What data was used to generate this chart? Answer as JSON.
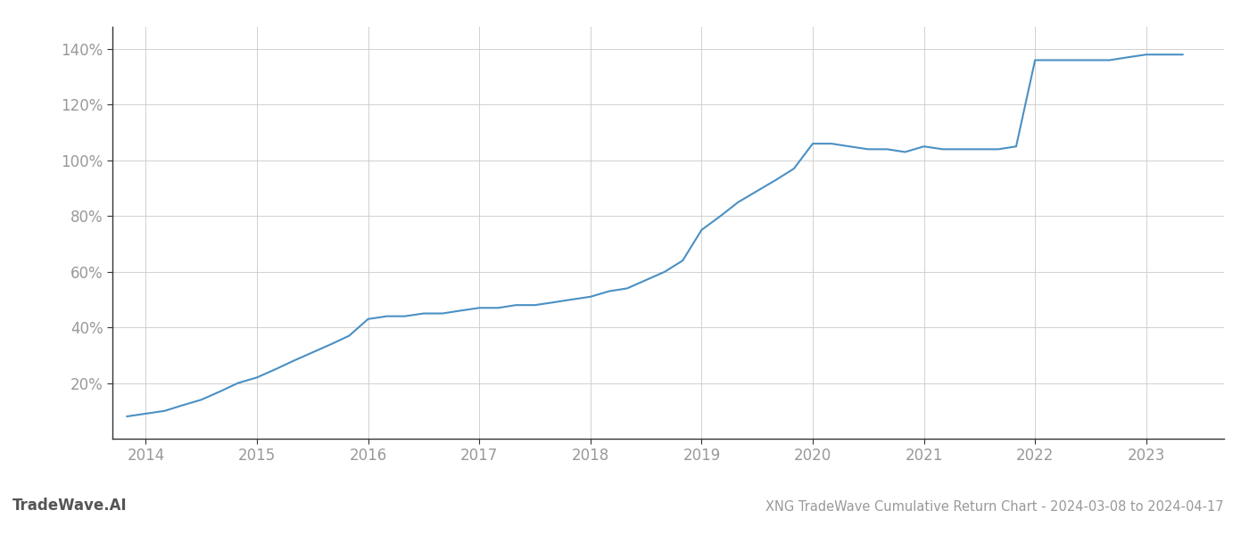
{
  "title": "XNG TradeWave Cumulative Return Chart - 2024-03-08 to 2024-04-17",
  "watermark": "TradeWave.AI",
  "line_color": "#4a90c4",
  "background_color": "#ffffff",
  "grid_color": "#cccccc",
  "x_years": [
    2013.83,
    2014.0,
    2014.17,
    2014.33,
    2014.5,
    2014.67,
    2014.83,
    2015.0,
    2015.17,
    2015.33,
    2015.5,
    2015.67,
    2015.83,
    2016.0,
    2016.17,
    2016.33,
    2016.5,
    2016.67,
    2016.83,
    2017.0,
    2017.17,
    2017.33,
    2017.5,
    2017.67,
    2017.83,
    2018.0,
    2018.17,
    2018.33,
    2018.5,
    2018.67,
    2018.83,
    2019.0,
    2019.17,
    2019.33,
    2019.5,
    2019.67,
    2019.83,
    2020.0,
    2020.17,
    2020.33,
    2020.5,
    2020.67,
    2020.83,
    2021.0,
    2021.17,
    2021.33,
    2021.5,
    2021.67,
    2021.83,
    2022.0,
    2022.17,
    2022.33,
    2022.5,
    2022.67,
    2022.83,
    2023.0,
    2023.17,
    2023.33
  ],
  "y_values": [
    8,
    9,
    10,
    12,
    14,
    17,
    20,
    22,
    25,
    28,
    31,
    34,
    37,
    43,
    44,
    44,
    45,
    45,
    46,
    47,
    47,
    48,
    48,
    49,
    50,
    51,
    53,
    54,
    57,
    60,
    64,
    75,
    80,
    85,
    89,
    93,
    97,
    106,
    106,
    105,
    104,
    104,
    103,
    105,
    104,
    104,
    104,
    104,
    105,
    136,
    136,
    136,
    136,
    136,
    137,
    138,
    138,
    138
  ],
  "xlim": [
    2013.7,
    2023.7
  ],
  "ylim_bottom": 0,
  "ylim_top": 148,
  "yticks": [
    20,
    40,
    60,
    80,
    100,
    120,
    140
  ],
  "ytick_labels": [
    "20%",
    "40%",
    "60%",
    "80%",
    "100%",
    "120%",
    "140%"
  ],
  "xticks": [
    2014,
    2015,
    2016,
    2017,
    2018,
    2019,
    2020,
    2021,
    2022,
    2023
  ],
  "xtick_labels": [
    "2014",
    "2015",
    "2016",
    "2017",
    "2018",
    "2019",
    "2020",
    "2021",
    "2022",
    "2023"
  ],
  "line_width": 1.5,
  "title_fontsize": 10.5,
  "tick_fontsize": 12,
  "watermark_fontsize": 12,
  "title_color": "#999999",
  "tick_color": "#999999",
  "watermark_color": "#555555",
  "spine_color": "#333333"
}
